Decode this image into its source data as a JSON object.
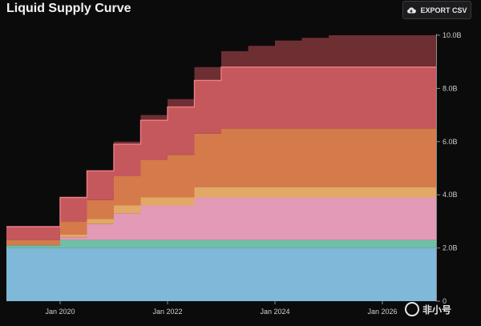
{
  "header": {
    "title": "Liquid Supply Curve",
    "export_label": "EXPORT CSV"
  },
  "watermark": {
    "text": "非小号"
  },
  "colors": {
    "background": "#0b0b0c",
    "layer_colors": [
      "#7fb8d8",
      "#6fbfa6",
      "#e29ab6",
      "#e2a866",
      "#d57a4a",
      "#c4585c",
      "#6e2f33"
    ],
    "edge_color": "#f27e84"
  },
  "chart_data": {
    "type": "area",
    "stacked": true,
    "title": "Liquid Supply Curve",
    "x": [
      "2019-01",
      "2019-07",
      "2020-01",
      "2020-07",
      "2021-01",
      "2021-07",
      "2022-01",
      "2022-07",
      "2023-01",
      "2023-07",
      "2024-01",
      "2024-07",
      "2025-01",
      "2025-07",
      "2026-01",
      "2026-07",
      "2027-01"
    ],
    "x_tick_labels": [
      "Jan 2020",
      "Jan 2022",
      "Jan 2024",
      "Jan 2026"
    ],
    "y_tick_labels": [
      "0",
      "2.0B",
      "4.0B",
      "6.0B",
      "8.0B",
      "10.0B"
    ],
    "ylim": [
      0,
      10.0
    ],
    "y_axis_side": "right",
    "grid": false,
    "legend": "none",
    "series": [
      {
        "values": [
          2.0,
          2.0,
          2.0,
          2.0,
          2.0,
          2.0,
          2.0,
          2.0,
          2.0,
          2.0,
          2.0,
          2.0,
          2.0,
          2.0,
          2.0,
          2.0,
          2.0
        ]
      },
      {
        "values": [
          0.1,
          0.1,
          0.3,
          0.3,
          0.3,
          0.3,
          0.3,
          0.3,
          0.3,
          0.3,
          0.3,
          0.3,
          0.3,
          0.3,
          0.3,
          0.3,
          0.3
        ]
      },
      {
        "values": [
          0.0,
          0.0,
          0.1,
          0.6,
          1.0,
          1.3,
          1.3,
          1.6,
          1.6,
          1.6,
          1.6,
          1.6,
          1.6,
          1.6,
          1.6,
          1.6,
          1.6
        ]
      },
      {
        "values": [
          0.0,
          0.0,
          0.1,
          0.2,
          0.3,
          0.3,
          0.3,
          0.4,
          0.4,
          0.4,
          0.4,
          0.4,
          0.4,
          0.4,
          0.4,
          0.4,
          0.4
        ]
      },
      {
        "values": [
          0.2,
          0.2,
          0.5,
          0.7,
          1.1,
          1.4,
          1.6,
          2.0,
          2.2,
          2.2,
          2.2,
          2.2,
          2.2,
          2.2,
          2.2,
          2.2,
          2.2
        ]
      },
      {
        "values": [
          0.5,
          0.5,
          0.9,
          1.1,
          1.2,
          1.5,
          1.8,
          2.0,
          2.3,
          2.3,
          2.3,
          2.3,
          2.3,
          2.3,
          2.3,
          2.3,
          2.3
        ]
      },
      {
        "values": [
          0.0,
          0.0,
          0.0,
          0.0,
          0.1,
          0.2,
          0.3,
          0.5,
          0.6,
          0.8,
          1.0,
          1.1,
          1.2,
          1.2,
          1.2,
          1.2,
          1.2
        ]
      }
    ]
  }
}
